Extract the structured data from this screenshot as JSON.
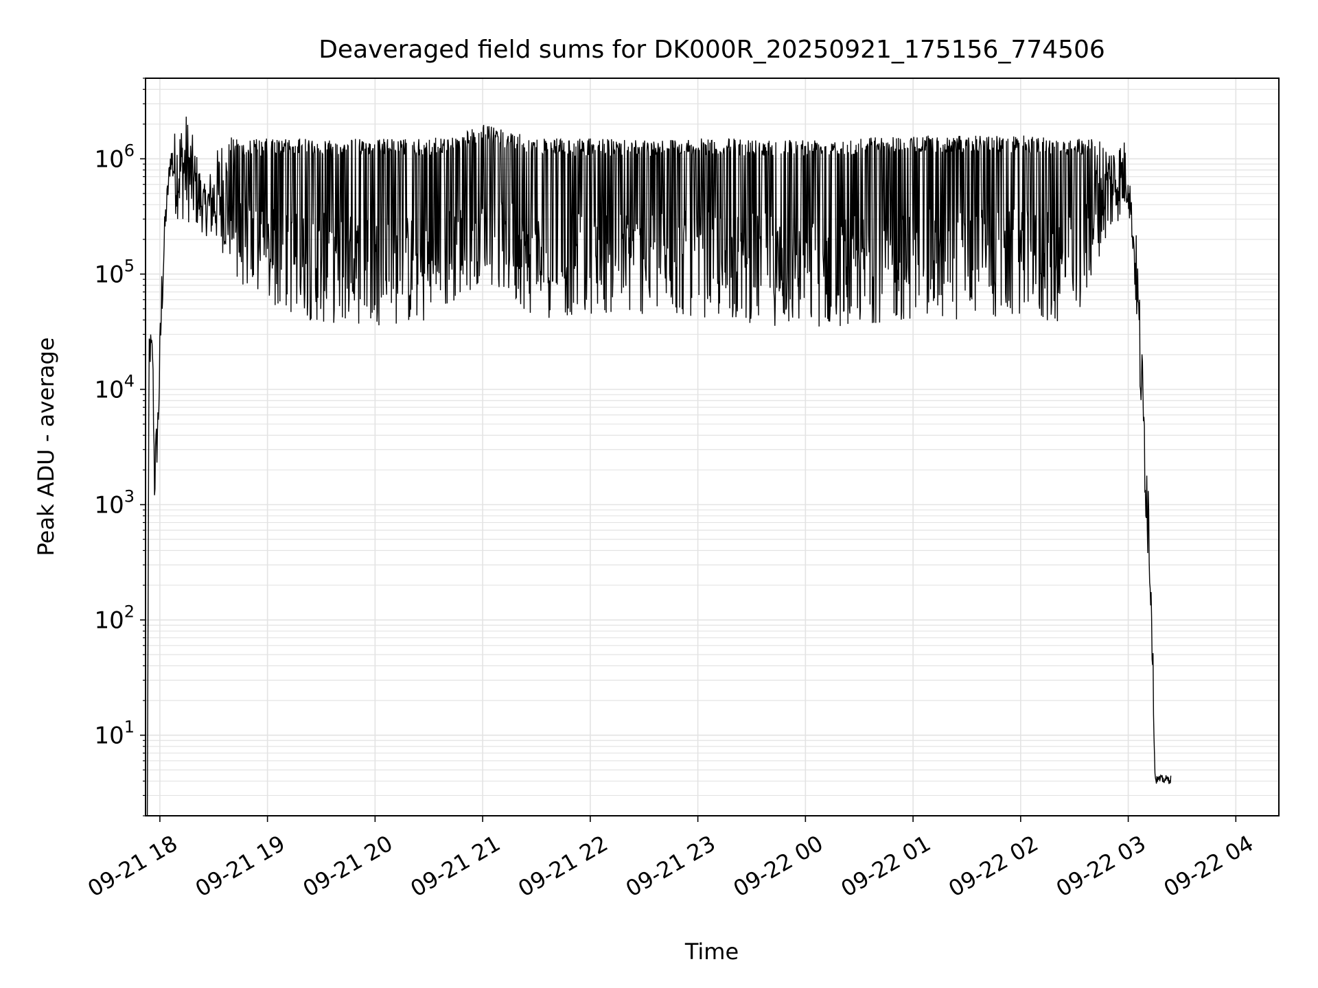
{
  "chart_data": {
    "type": "line",
    "title": "Deaveraged field sums for DK000R_20250921_175156_774506",
    "xlabel": "Time",
    "ylabel": "Peak ADU - average",
    "yscale": "log",
    "ylim": [
      2,
      5000000
    ],
    "xlim": [
      "2025-09-21 17:52",
      "2025-09-22 04:24"
    ],
    "grid": true,
    "line_color": "#000000",
    "grid_color": "#e3e3e3",
    "x_ticks": [
      {
        "value": "2025-09-21 18:00",
        "label": "09-21 18"
      },
      {
        "value": "2025-09-21 19:00",
        "label": "09-21 19"
      },
      {
        "value": "2025-09-21 20:00",
        "label": "09-21 20"
      },
      {
        "value": "2025-09-21 21:00",
        "label": "09-21 21"
      },
      {
        "value": "2025-09-21 22:00",
        "label": "09-21 22"
      },
      {
        "value": "2025-09-21 23:00",
        "label": "09-21 23"
      },
      {
        "value": "2025-09-22 00:00",
        "label": "09-22 00"
      },
      {
        "value": "2025-09-22 01:00",
        "label": "09-22 01"
      },
      {
        "value": "2025-09-22 02:00",
        "label": "09-22 02"
      },
      {
        "value": "2025-09-22 03:00",
        "label": "09-22 03"
      },
      {
        "value": "2025-09-22 04:00",
        "label": "09-22 04"
      }
    ],
    "y_ticks": [
      {
        "value": 10,
        "base": "10",
        "exp": "1"
      },
      {
        "value": 100,
        "base": "10",
        "exp": "2"
      },
      {
        "value": 1000,
        "base": "10",
        "exp": "3"
      },
      {
        "value": 10000,
        "base": "10",
        "exp": "4"
      },
      {
        "value": 100000,
        "base": "10",
        "exp": "5"
      },
      {
        "value": 1000000,
        "base": "10",
        "exp": "6"
      }
    ],
    "series": [
      {
        "envelope": [
          {
            "t": "2025-09-21 17:53",
            "low": 2,
            "high": 2
          },
          {
            "t": "2025-09-21 17:54",
            "low": 15000,
            "high": 37000
          },
          {
            "t": "2025-09-21 17:56",
            "low": 15000,
            "high": 28000
          },
          {
            "t": "2025-09-21 17:57",
            "low": 900,
            "high": 3000
          },
          {
            "t": "2025-09-21 17:59",
            "low": 3000,
            "high": 9000
          },
          {
            "t": "2025-09-21 18:01",
            "low": 30000,
            "high": 120000
          },
          {
            "t": "2025-09-21 18:03",
            "low": 200000,
            "high": 400000
          },
          {
            "t": "2025-09-21 18:06",
            "low": 800000,
            "high": 1300000
          },
          {
            "t": "2025-09-21 18:09",
            "low": 300000,
            "high": 2000000
          },
          {
            "t": "2025-09-21 18:15",
            "low": 280000,
            "high": 2600000
          },
          {
            "t": "2025-09-21 18:25",
            "low": 220000,
            "high": 600000
          },
          {
            "t": "2025-09-21 18:35",
            "low": 150000,
            "high": 1700000
          },
          {
            "t": "2025-09-21 18:45",
            "low": 80000,
            "high": 1500000
          },
          {
            "t": "2025-09-21 19:00",
            "low": 50000,
            "high": 1500000
          },
          {
            "t": "2025-09-21 19:30",
            "low": 37000,
            "high": 1500000
          },
          {
            "t": "2025-09-21 20:00",
            "low": 36000,
            "high": 1500000
          },
          {
            "t": "2025-09-21 20:30",
            "low": 35000,
            "high": 1500000
          },
          {
            "t": "2025-09-21 20:45",
            "low": 55000,
            "high": 1600000
          },
          {
            "t": "2025-09-21 21:00",
            "low": 90000,
            "high": 2000000
          },
          {
            "t": "2025-09-21 21:30",
            "low": 40000,
            "high": 1500000
          },
          {
            "t": "2025-09-21 22:00",
            "low": 45000,
            "high": 1500000
          },
          {
            "t": "2025-09-21 23:00",
            "low": 42000,
            "high": 1500000
          },
          {
            "t": "2025-09-22 00:00",
            "low": 33000,
            "high": 1500000
          },
          {
            "t": "2025-09-22 01:00",
            "low": 40000,
            "high": 1600000
          },
          {
            "t": "2025-09-22 02:00",
            "low": 40000,
            "high": 1600000
          },
          {
            "t": "2025-09-22 02:30",
            "low": 35000,
            "high": 1500000
          },
          {
            "t": "2025-09-22 02:45",
            "low": 160000,
            "high": 1600000
          },
          {
            "t": "2025-09-22 02:58",
            "low": 350000,
            "high": 1500000
          },
          {
            "t": "2025-09-22 03:00",
            "low": 350000,
            "high": 1300000
          },
          {
            "t": "2025-09-22 03:02",
            "low": 200000,
            "high": 400000
          },
          {
            "t": "2025-09-22 03:05",
            "low": 30000,
            "high": 200000
          },
          {
            "t": "2025-09-22 03:08",
            "low": 2500,
            "high": 20000
          },
          {
            "t": "2025-09-22 03:11",
            "low": 300,
            "high": 3000
          },
          {
            "t": "2025-09-22 03:13",
            "low": 70,
            "high": 300
          },
          {
            "t": "2025-09-22 03:15",
            "low": 3.8,
            "high": 4.5
          },
          {
            "t": "2025-09-22 03:24",
            "low": 3.8,
            "high": 4.5
          }
        ]
      }
    ]
  }
}
